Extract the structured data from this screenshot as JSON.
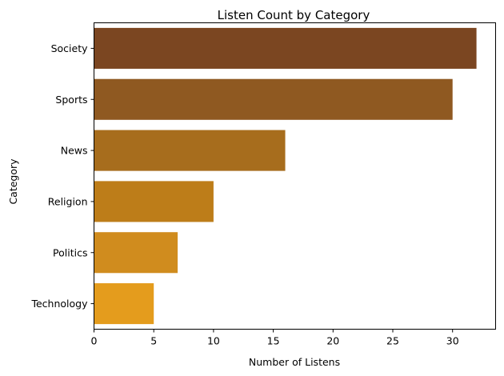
{
  "chart_data": {
    "type": "bar",
    "orientation": "horizontal",
    "title": "Listen Count by Category",
    "xlabel": "Number of Listens",
    "ylabel": "Category",
    "categories": [
      "Society",
      "Sports",
      "News",
      "Religion",
      "Politics",
      "Technology"
    ],
    "values": [
      32,
      30,
      16,
      10,
      7,
      5
    ],
    "bar_colors": [
      "#7b4621",
      "#8f5921",
      "#a76d1d",
      "#bd7d19",
      "#d08c1e",
      "#e49c1d"
    ],
    "xlim": [
      0,
      33.6
    ],
    "xticks": [
      0,
      5,
      10,
      15,
      20,
      25,
      30
    ],
    "xtick_labels": [
      "0",
      "5",
      "10",
      "15",
      "20",
      "25",
      "30"
    ],
    "grid": false,
    "legend": "none"
  }
}
